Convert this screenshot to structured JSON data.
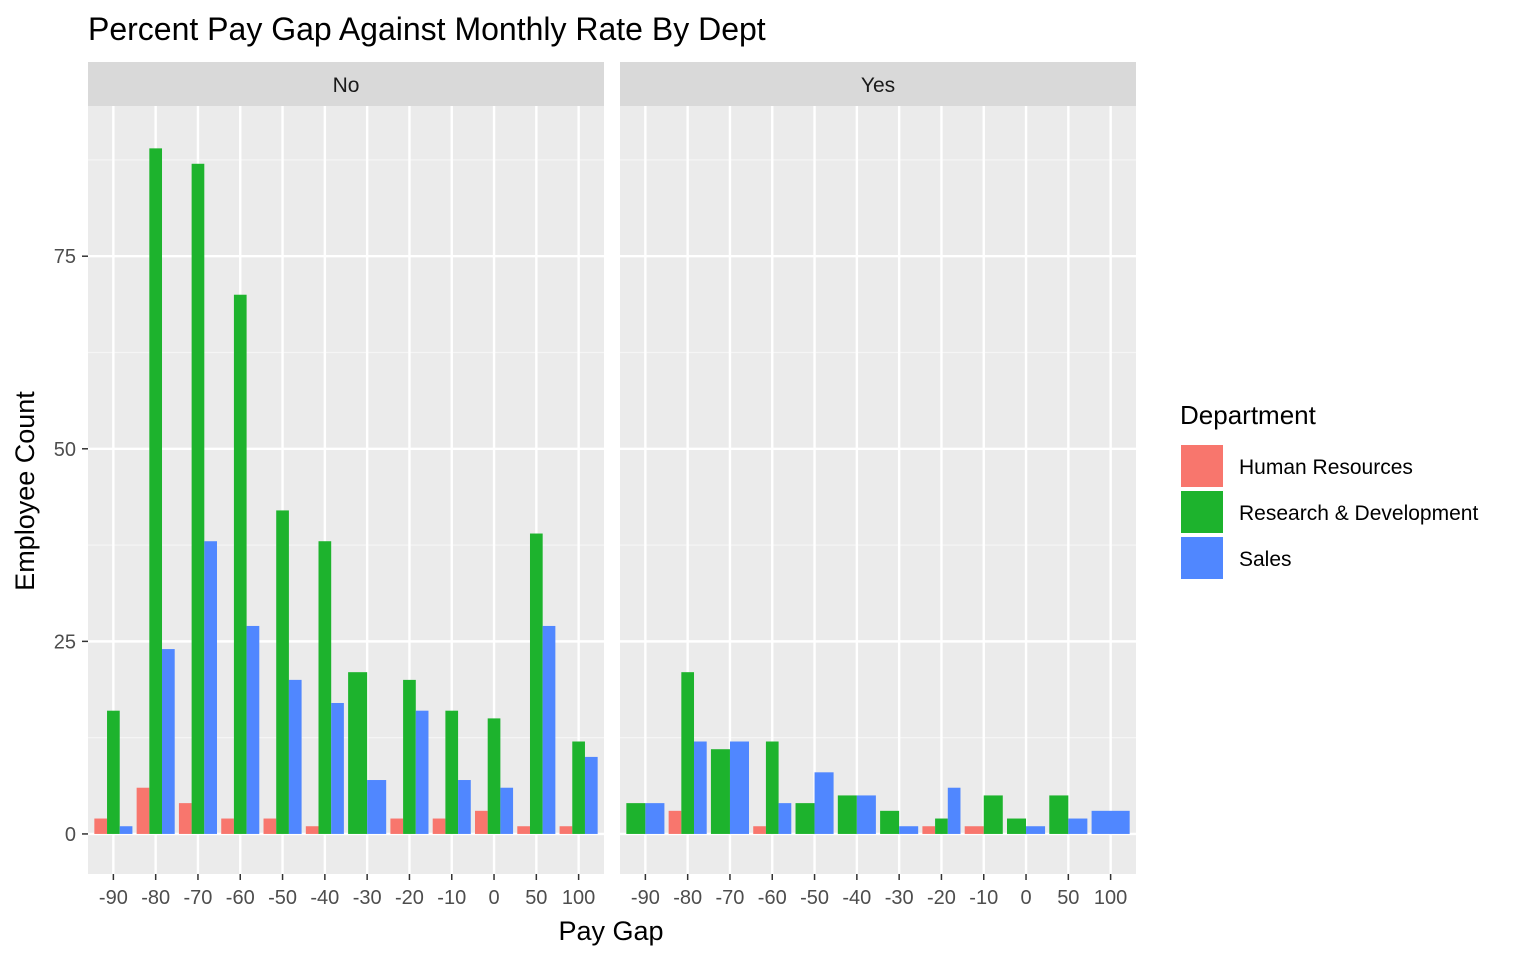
{
  "chart_data": {
    "type": "bar",
    "title": "Percent Pay Gap Against Monthly Rate By Dept",
    "xlabel": "Pay Gap",
    "ylabel": "Employee Count",
    "ylim": [
      -5.2,
      94.5
    ],
    "yticks": [
      0,
      25,
      50,
      75
    ],
    "grid": true,
    "legend": {
      "title": "Department",
      "position": "right",
      "items": [
        "Human Resources",
        "Research & Development",
        "Sales"
      ]
    },
    "colors": {
      "Human Resources": "#F8766D",
      "Research & Development": "#1DB32D",
      "Sales": "#5087FF",
      "panel_bg": "#EBEBEB",
      "strip_bg": "#D9D9D9"
    },
    "categories": [
      "-90",
      "-80",
      "-70",
      "-60",
      "-50",
      "-40",
      "-30",
      "-20",
      "-10",
      "0",
      "50",
      "100"
    ],
    "facets": [
      {
        "label": "No",
        "series": [
          {
            "name": "Human Resources",
            "values": [
              2,
              6,
              4,
              2,
              2,
              1,
              null,
              2,
              2,
              3,
              1,
              1
            ]
          },
          {
            "name": "Research & Development",
            "values": [
              16,
              89,
              87,
              70,
              42,
              38,
              21,
              20,
              16,
              15,
              39,
              12
            ]
          },
          {
            "name": "Sales",
            "values": [
              1,
              24,
              38,
              27,
              20,
              17,
              7,
              16,
              7,
              6,
              27,
              10
            ]
          }
        ]
      },
      {
        "label": "Yes",
        "series": [
          {
            "name": "Human Resources",
            "values": [
              null,
              3,
              null,
              1,
              null,
              null,
              null,
              1,
              1,
              null,
              null,
              null
            ]
          },
          {
            "name": "Research & Development",
            "values": [
              4,
              21,
              11,
              12,
              4,
              5,
              3,
              2,
              5,
              2,
              5,
              null
            ]
          },
          {
            "name": "Sales",
            "values": [
              4,
              12,
              12,
              4,
              8,
              5,
              1,
              6,
              null,
              1,
              2,
              3
            ]
          }
        ]
      }
    ]
  }
}
